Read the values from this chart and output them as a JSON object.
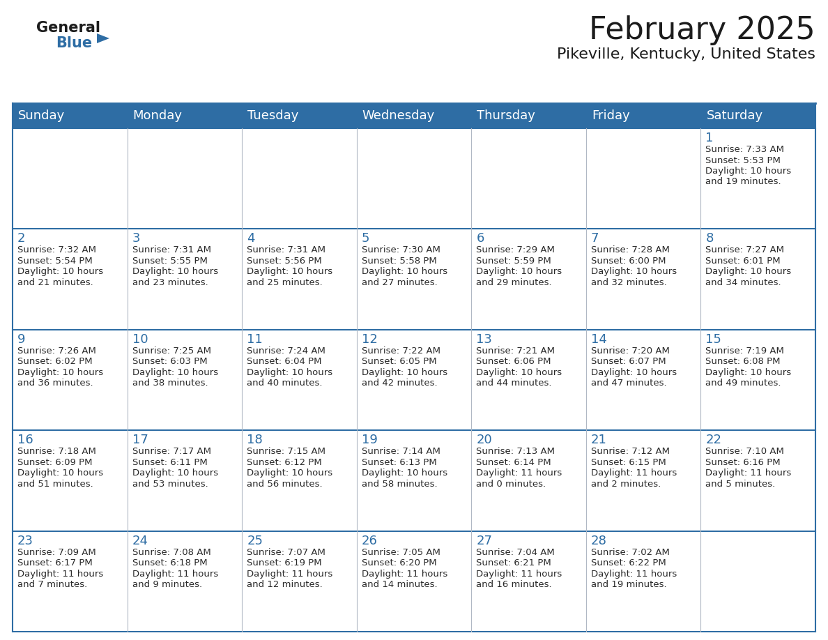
{
  "title": "February 2025",
  "subtitle": "Pikeville, Kentucky, United States",
  "days_of_week": [
    "Sunday",
    "Monday",
    "Tuesday",
    "Wednesday",
    "Thursday",
    "Friday",
    "Saturday"
  ],
  "header_bg": "#2E6DA4",
  "header_text": "#FFFFFF",
  "cell_bg": "#EBEBEB",
  "day_number_color": "#2E6DA4",
  "text_color": "#2a2a2a",
  "line_color": "#2E6DA4",
  "title_fontsize": 32,
  "subtitle_fontsize": 16,
  "header_fontsize": 13,
  "day_num_fontsize": 13,
  "cell_text_fontsize": 9.5,
  "calendar_data": [
    [
      null,
      null,
      null,
      null,
      null,
      null,
      {
        "day": "1",
        "sunrise": "7:33 AM",
        "sunset": "5:53 PM",
        "daylight_l1": "Daylight: 10 hours",
        "daylight_l2": "and 19 minutes."
      }
    ],
    [
      {
        "day": "2",
        "sunrise": "7:32 AM",
        "sunset": "5:54 PM",
        "daylight_l1": "Daylight: 10 hours",
        "daylight_l2": "and 21 minutes."
      },
      {
        "day": "3",
        "sunrise": "7:31 AM",
        "sunset": "5:55 PM",
        "daylight_l1": "Daylight: 10 hours",
        "daylight_l2": "and 23 minutes."
      },
      {
        "day": "4",
        "sunrise": "7:31 AM",
        "sunset": "5:56 PM",
        "daylight_l1": "Daylight: 10 hours",
        "daylight_l2": "and 25 minutes."
      },
      {
        "day": "5",
        "sunrise": "7:30 AM",
        "sunset": "5:58 PM",
        "daylight_l1": "Daylight: 10 hours",
        "daylight_l2": "and 27 minutes."
      },
      {
        "day": "6",
        "sunrise": "7:29 AM",
        "sunset": "5:59 PM",
        "daylight_l1": "Daylight: 10 hours",
        "daylight_l2": "and 29 minutes."
      },
      {
        "day": "7",
        "sunrise": "7:28 AM",
        "sunset": "6:00 PM",
        "daylight_l1": "Daylight: 10 hours",
        "daylight_l2": "and 32 minutes."
      },
      {
        "day": "8",
        "sunrise": "7:27 AM",
        "sunset": "6:01 PM",
        "daylight_l1": "Daylight: 10 hours",
        "daylight_l2": "and 34 minutes."
      }
    ],
    [
      {
        "day": "9",
        "sunrise": "7:26 AM",
        "sunset": "6:02 PM",
        "daylight_l1": "Daylight: 10 hours",
        "daylight_l2": "and 36 minutes."
      },
      {
        "day": "10",
        "sunrise": "7:25 AM",
        "sunset": "6:03 PM",
        "daylight_l1": "Daylight: 10 hours",
        "daylight_l2": "and 38 minutes."
      },
      {
        "day": "11",
        "sunrise": "7:24 AM",
        "sunset": "6:04 PM",
        "daylight_l1": "Daylight: 10 hours",
        "daylight_l2": "and 40 minutes."
      },
      {
        "day": "12",
        "sunrise": "7:22 AM",
        "sunset": "6:05 PM",
        "daylight_l1": "Daylight: 10 hours",
        "daylight_l2": "and 42 minutes."
      },
      {
        "day": "13",
        "sunrise": "7:21 AM",
        "sunset": "6:06 PM",
        "daylight_l1": "Daylight: 10 hours",
        "daylight_l2": "and 44 minutes."
      },
      {
        "day": "14",
        "sunrise": "7:20 AM",
        "sunset": "6:07 PM",
        "daylight_l1": "Daylight: 10 hours",
        "daylight_l2": "and 47 minutes."
      },
      {
        "day": "15",
        "sunrise": "7:19 AM",
        "sunset": "6:08 PM",
        "daylight_l1": "Daylight: 10 hours",
        "daylight_l2": "and 49 minutes."
      }
    ],
    [
      {
        "day": "16",
        "sunrise": "7:18 AM",
        "sunset": "6:09 PM",
        "daylight_l1": "Daylight: 10 hours",
        "daylight_l2": "and 51 minutes."
      },
      {
        "day": "17",
        "sunrise": "7:17 AM",
        "sunset": "6:11 PM",
        "daylight_l1": "Daylight: 10 hours",
        "daylight_l2": "and 53 minutes."
      },
      {
        "day": "18",
        "sunrise": "7:15 AM",
        "sunset": "6:12 PM",
        "daylight_l1": "Daylight: 10 hours",
        "daylight_l2": "and 56 minutes."
      },
      {
        "day": "19",
        "sunrise": "7:14 AM",
        "sunset": "6:13 PM",
        "daylight_l1": "Daylight: 10 hours",
        "daylight_l2": "and 58 minutes."
      },
      {
        "day": "20",
        "sunrise": "7:13 AM",
        "sunset": "6:14 PM",
        "daylight_l1": "Daylight: 11 hours",
        "daylight_l2": "and 0 minutes."
      },
      {
        "day": "21",
        "sunrise": "7:12 AM",
        "sunset": "6:15 PM",
        "daylight_l1": "Daylight: 11 hours",
        "daylight_l2": "and 2 minutes."
      },
      {
        "day": "22",
        "sunrise": "7:10 AM",
        "sunset": "6:16 PM",
        "daylight_l1": "Daylight: 11 hours",
        "daylight_l2": "and 5 minutes."
      }
    ],
    [
      {
        "day": "23",
        "sunrise": "7:09 AM",
        "sunset": "6:17 PM",
        "daylight_l1": "Daylight: 11 hours",
        "daylight_l2": "and 7 minutes."
      },
      {
        "day": "24",
        "sunrise": "7:08 AM",
        "sunset": "6:18 PM",
        "daylight_l1": "Daylight: 11 hours",
        "daylight_l2": "and 9 minutes."
      },
      {
        "day": "25",
        "sunrise": "7:07 AM",
        "sunset": "6:19 PM",
        "daylight_l1": "Daylight: 11 hours",
        "daylight_l2": "and 12 minutes."
      },
      {
        "day": "26",
        "sunrise": "7:05 AM",
        "sunset": "6:20 PM",
        "daylight_l1": "Daylight: 11 hours",
        "daylight_l2": "and 14 minutes."
      },
      {
        "day": "27",
        "sunrise": "7:04 AM",
        "sunset": "6:21 PM",
        "daylight_l1": "Daylight: 11 hours",
        "daylight_l2": "and 16 minutes."
      },
      {
        "day": "28",
        "sunrise": "7:02 AM",
        "sunset": "6:22 PM",
        "daylight_l1": "Daylight: 11 hours",
        "daylight_l2": "and 19 minutes."
      },
      null
    ]
  ]
}
